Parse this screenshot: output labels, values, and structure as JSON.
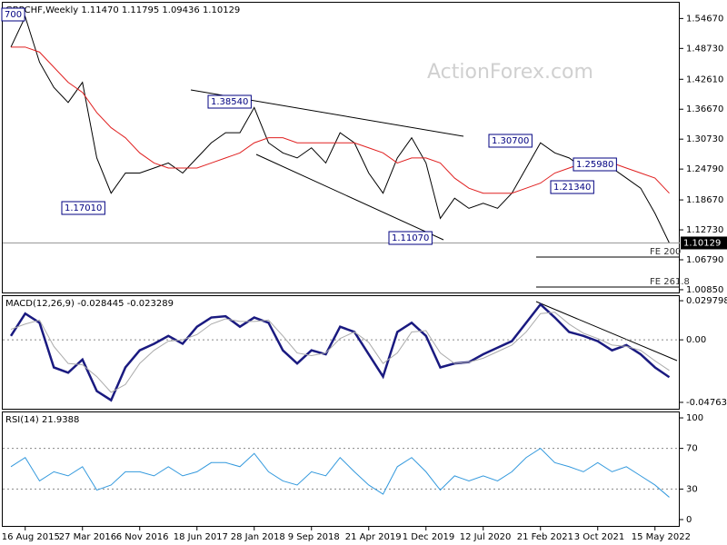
{
  "header": "GBPCHF,Weekly  1.11470 1.11795 1.09436 1.10129",
  "watermark": "ActionForex.com",
  "chart_data": [
    {
      "type": "line",
      "categories": [
        null,
        "16 Aug 2015",
        null,
        null,
        null,
        "27 Mar 2016",
        null,
        null,
        null,
        "6 Nov 2016",
        null,
        null,
        null,
        "18 Jun 2017",
        null,
        null,
        null,
        "28 Jan 2018",
        null,
        null,
        null,
        "9 Sep 2018",
        null,
        null,
        null,
        "21 Apr 2019",
        null,
        null,
        null,
        "1 Dec 2019",
        null,
        null,
        null,
        "12 Jul 2020",
        null,
        null,
        null,
        "21 Feb 2021",
        null,
        null,
        null,
        "3 Oct 2021",
        null,
        null,
        null,
        "15 May 2022",
        null
      ],
      "series": [
        {
          "color": "#000000",
          "values": [
            1.49,
            1.55,
            1.46,
            1.41,
            1.38,
            1.42,
            1.27,
            1.2,
            1.24,
            1.24,
            1.25,
            1.26,
            1.24,
            1.27,
            1.3,
            1.32,
            1.32,
            1.37,
            1.3,
            1.28,
            1.27,
            1.29,
            1.26,
            1.32,
            1.3,
            1.24,
            1.2,
            1.27,
            1.31,
            1.26,
            1.15,
            1.19,
            1.17,
            1.18,
            1.17,
            1.2,
            1.25,
            1.3,
            1.28,
            1.27,
            1.25,
            1.26,
            1.25,
            1.23,
            1.21,
            1.16,
            1.10129
          ]
        },
        {
          "color": "#e02020",
          "values": [
            1.49,
            1.49,
            1.48,
            1.45,
            1.42,
            1.4,
            1.36,
            1.33,
            1.31,
            1.28,
            1.26,
            1.25,
            1.25,
            1.25,
            1.26,
            1.27,
            1.28,
            1.3,
            1.31,
            1.31,
            1.3,
            1.3,
            1.3,
            1.3,
            1.3,
            1.29,
            1.28,
            1.26,
            1.27,
            1.27,
            1.26,
            1.23,
            1.21,
            1.2,
            1.2,
            1.2,
            1.21,
            1.22,
            1.24,
            1.25,
            1.26,
            1.26,
            1.26,
            1.25,
            1.24,
            1.23,
            1.2
          ]
        }
      ],
      "ylim": [
        1.003,
        1.578
      ],
      "yticks": [
        {
          "value": 1.5467,
          "label": "1.54670"
        },
        {
          "value": 1.4873,
          "label": "1.48730"
        },
        {
          "value": 1.4261,
          "label": "1.42610"
        },
        {
          "value": 1.3667,
          "label": "1.36670"
        },
        {
          "value": 1.3073,
          "label": "1.30730"
        },
        {
          "value": 1.2479,
          "label": "1.24790"
        },
        {
          "value": 1.1867,
          "label": "1.18670"
        },
        {
          "value": 1.1273,
          "label": "1.12730"
        },
        {
          "value": 1.0679,
          "label": "1.06790"
        },
        {
          "value": 1.0085,
          "label": "1.00850"
        }
      ],
      "current": {
        "value": 1.10129,
        "label": "1.10129"
      },
      "annotations": [
        "700",
        "1.17010",
        "1.38540",
        "1.11070",
        "1.30700",
        "1.25980",
        "1.21340",
        "FE 200",
        "FE 261.8"
      ],
      "grid": false
    },
    {
      "type": "line",
      "title": "MACD(12,26,9) -0.028445 -0.023289",
      "series": [
        {
          "color": "#1a1a80",
          "values": [
            0.003,
            0.02,
            0.013,
            -0.021,
            -0.025,
            -0.015,
            -0.039,
            -0.046,
            -0.021,
            -0.008,
            -0.003,
            0.003,
            -0.003,
            0.01,
            0.017,
            0.018,
            0.01,
            0.017,
            0.013,
            -0.008,
            -0.018,
            -0.008,
            -0.011,
            0.01,
            0.006,
            -0.011,
            -0.028,
            0.006,
            0.013,
            0.003,
            -0.021,
            -0.018,
            -0.017,
            -0.011,
            -0.006,
            -0.001,
            0.013,
            0.027,
            0.017,
            0.006,
            0.003,
            -0.001,
            -0.008,
            -0.004,
            -0.011,
            -0.021,
            -0.028445
          ]
        },
        {
          "color": "#aaaaaa",
          "values": [
            0.008,
            0.012,
            0.015,
            -0.005,
            -0.018,
            -0.019,
            -0.028,
            -0.04,
            -0.034,
            -0.018,
            -0.008,
            -0.001,
            0.0,
            0.004,
            0.012,
            0.016,
            0.014,
            0.014,
            0.015,
            0.003,
            -0.01,
            -0.012,
            -0.01,
            0.001,
            0.006,
            -0.002,
            -0.018,
            -0.01,
            0.006,
            0.007,
            -0.01,
            -0.018,
            -0.017,
            -0.014,
            -0.009,
            -0.004,
            0.006,
            0.02,
            0.021,
            0.012,
            0.005,
            0.001,
            -0.004,
            -0.005,
            -0.008,
            -0.016,
            -0.023289
          ]
        }
      ],
      "ylim": [
        -0.0525,
        0.0333
      ],
      "yticks": [
        0.029798,
        {
          "value": 0,
          "label": "0.00"
        },
        -0.047637
      ],
      "grid": true
    },
    {
      "type": "line",
      "title": "RSI(14) 21.9388",
      "series": [
        {
          "color": "#3399dd",
          "values": [
            52,
            61,
            38,
            47,
            43,
            52,
            29,
            34,
            47,
            47,
            43,
            52,
            43,
            47,
            56,
            56,
            52,
            65,
            47,
            38,
            34,
            47,
            43,
            61,
            47,
            34,
            25,
            52,
            61,
            47,
            29,
            43,
            38,
            43,
            38,
            47,
            61,
            70,
            56,
            52,
            47,
            56,
            47,
            52,
            43,
            34,
            21.9388
          ]
        }
      ],
      "ylim": [
        -6.25,
        105.4
      ],
      "yticks": [
        100,
        70,
        30,
        0
      ],
      "grid": true
    }
  ]
}
